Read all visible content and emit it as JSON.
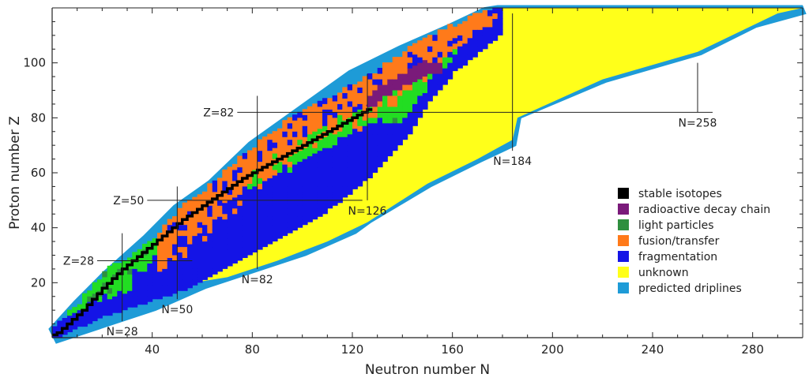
{
  "chart_data": {
    "type": "heatmap",
    "xlabel": "Neutron number N",
    "ylabel": "Proton number Z",
    "xlim": [
      0,
      300
    ],
    "ylim": [
      0,
      120
    ],
    "xticks": [
      40,
      80,
      120,
      160,
      200,
      240,
      280
    ],
    "yticks": [
      20,
      40,
      60,
      80,
      100
    ],
    "grid": false,
    "legend_position": "right",
    "colors": {
      "stable": "#000000",
      "decay": "#7a1a7a",
      "light": "#2f8f3f",
      "lightBright": "#22dd22",
      "fusion": "#ff7a1a",
      "fragmentation": "#1414e6",
      "unknown": "#ffff1a",
      "driplines": "#1e9bd7"
    },
    "legend": [
      {
        "key": "stable",
        "label": "stable isotopes"
      },
      {
        "key": "decay",
        "label": "radioactive decay chain"
      },
      {
        "key": "light",
        "label": "light particles"
      },
      {
        "key": "fusion",
        "label": "fusion/transfer"
      },
      {
        "key": "fragmentation",
        "label": "fragmentation"
      },
      {
        "key": "unknown",
        "label": "unknown"
      },
      {
        "key": "driplines",
        "label": "predicted driplines"
      }
    ],
    "magic_numbers": {
      "Z": [
        {
          "label": "Z=28",
          "value": 28,
          "n_start": 18,
          "n_end": 56
        },
        {
          "label": "Z=50",
          "value": 50,
          "n_start": 38,
          "n_end": 124
        },
        {
          "label": "Z=82",
          "value": 82,
          "n_start": 74,
          "n_end": 264
        }
      ],
      "N": [
        {
          "label": "N=28",
          "value": 28,
          "z_start": 6,
          "z_end": 38
        },
        {
          "label": "N=50",
          "value": 50,
          "z_start": 14,
          "z_end": 55
        },
        {
          "label": "N=82",
          "value": 82,
          "z_start": 25,
          "z_end": 88
        },
        {
          "label": "N=126",
          "value": 126,
          "z_start": 50,
          "z_end": 96
        },
        {
          "label": "N=184",
          "value": 184,
          "z_start": 68,
          "z_end": 118
        },
        {
          "label": "N=258",
          "value": 258,
          "z_start": 82,
          "z_end": 100
        }
      ]
    },
    "driplines": {
      "proton": [
        [
          0,
          1
        ],
        [
          10,
          11
        ],
        [
          22,
          22
        ],
        [
          38,
          35
        ],
        [
          50,
          46
        ],
        [
          64,
          55
        ],
        [
          80,
          69
        ],
        [
          100,
          82
        ],
        [
          120,
          95
        ],
        [
          140,
          104
        ],
        [
          160,
          112
        ],
        [
          174,
          118
        ]
      ],
      "neutron": [
        [
          0,
          0
        ],
        [
          20,
          6
        ],
        [
          40,
          12
        ],
        [
          60,
          20
        ],
        [
          80,
          26
        ],
        [
          100,
          32
        ],
        [
          120,
          40
        ],
        [
          126,
          44
        ],
        [
          150,
          57
        ],
        [
          170,
          66
        ],
        [
          184,
          72
        ],
        [
          186,
          82
        ],
        [
          220,
          95
        ],
        [
          258,
          105
        ],
        [
          280,
          115
        ],
        [
          300,
          120
        ]
      ]
    },
    "unknown_region": {
      "upper": [
        [
          30,
          24
        ],
        [
          55,
          40
        ],
        [
          90,
          62
        ],
        [
          120,
          80
        ],
        [
          150,
          100
        ],
        [
          175,
          117
        ],
        [
          178,
          120
        ],
        [
          300,
          120
        ]
      ],
      "lower": [
        [
          30,
          16
        ],
        [
          50,
          19
        ],
        [
          70,
          22
        ],
        [
          90,
          28
        ],
        [
          110,
          35
        ],
        [
          126,
          42
        ],
        [
          150,
          56
        ],
        [
          170,
          65
        ],
        [
          184,
          72
        ],
        [
          186,
          80
        ],
        [
          220,
          94
        ],
        [
          258,
          104
        ],
        [
          290,
          118
        ],
        [
          300,
          120
        ]
      ]
    },
    "known_band": [
      {
        "n": 0,
        "z_lo": 0,
        "z_hi": 2
      },
      {
        "n": 10,
        "z_lo": 4,
        "z_hi": 11
      },
      {
        "n": 20,
        "z_lo": 8,
        "z_hi": 22
      },
      {
        "n": 30,
        "z_lo": 11,
        "z_hi": 28
      },
      {
        "n": 40,
        "z_lo": 14,
        "z_hi": 35
      },
      {
        "n": 50,
        "z_lo": 17,
        "z_hi": 45
      },
      {
        "n": 60,
        "z_lo": 21,
        "z_hi": 52
      },
      {
        "n": 70,
        "z_lo": 26,
        "z_hi": 60
      },
      {
        "n": 80,
        "z_lo": 31,
        "z_hi": 68
      },
      {
        "n": 90,
        "z_lo": 36,
        "z_hi": 75
      },
      {
        "n": 100,
        "z_lo": 41,
        "z_hi": 82
      },
      {
        "n": 110,
        "z_lo": 47,
        "z_hi": 86
      },
      {
        "n": 120,
        "z_lo": 54,
        "z_hi": 90
      },
      {
        "n": 130,
        "z_lo": 62,
        "z_hi": 96
      },
      {
        "n": 140,
        "z_lo": 72,
        "z_hi": 102
      },
      {
        "n": 150,
        "z_lo": 86,
        "z_hi": 108
      },
      {
        "n": 160,
        "z_lo": 97,
        "z_hi": 112
      },
      {
        "n": 170,
        "z_lo": 104,
        "z_hi": 116
      },
      {
        "n": 178,
        "z_lo": 110,
        "z_hi": 118
      }
    ],
    "stability_line": [
      [
        1,
        1
      ],
      [
        6,
        5
      ],
      [
        12,
        10
      ],
      [
        20,
        18
      ],
      [
        28,
        25
      ],
      [
        36,
        31
      ],
      [
        44,
        37
      ],
      [
        52,
        43
      ],
      [
        60,
        48
      ],
      [
        68,
        53
      ],
      [
        76,
        58
      ],
      [
        84,
        62
      ],
      [
        92,
        66
      ],
      [
        100,
        70
      ],
      [
        108,
        74
      ],
      [
        116,
        78
      ],
      [
        124,
        82
      ],
      [
        126,
        83
      ]
    ],
    "decay_chain": [
      [
        126,
        84
      ],
      [
        128,
        86
      ],
      [
        130,
        88
      ],
      [
        134,
        90
      ],
      [
        138,
        92
      ],
      [
        142,
        94
      ],
      [
        146,
        96
      ],
      [
        150,
        98
      ]
    ]
  }
}
